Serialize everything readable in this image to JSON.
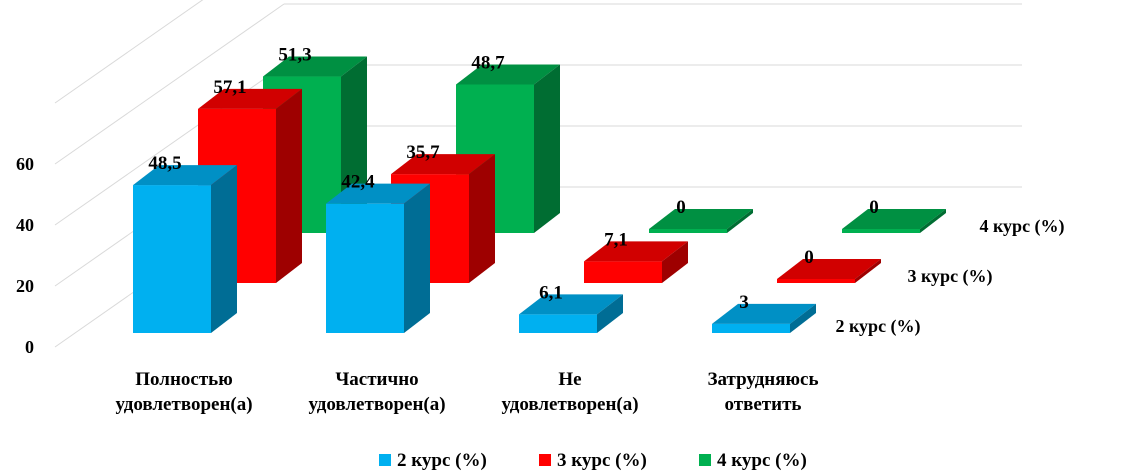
{
  "chart_data": {
    "type": "bar",
    "style": "3d-clustered-columns",
    "title": "",
    "xlabel": "",
    "ylabel": "",
    "ylim": [
      0,
      60
    ],
    "yticks": [
      "0",
      "20",
      "40",
      "60"
    ],
    "grid": true,
    "legend_position": "bottom",
    "categories": [
      [
        "Полностью",
        "удовлетворен(а)"
      ],
      [
        "Частично",
        "удовлетворен(а)"
      ],
      [
        "Не",
        "удовлетворен(а)"
      ],
      [
        "Затрудняюсь",
        "ответить"
      ]
    ],
    "series": [
      {
        "name": "2 курс (%)",
        "values": [
          48.5,
          42.4,
          6.1,
          3
        ],
        "labels": [
          "48,5",
          "42,4",
          "6,1",
          "3"
        ],
        "color": "#00b0f0"
      },
      {
        "name": "3 курс (%)",
        "values": [
          57.1,
          35.7,
          7.1,
          0
        ],
        "labels": [
          "57,1",
          "35,7",
          "7,1",
          "0"
        ],
        "color": "#ff0000"
      },
      {
        "name": "4 курс (%)",
        "values": [
          51.3,
          48.7,
          0,
          0
        ],
        "labels": [
          "51,3",
          "48,7",
          "0",
          "0"
        ],
        "color": "#00b050"
      }
    ]
  }
}
